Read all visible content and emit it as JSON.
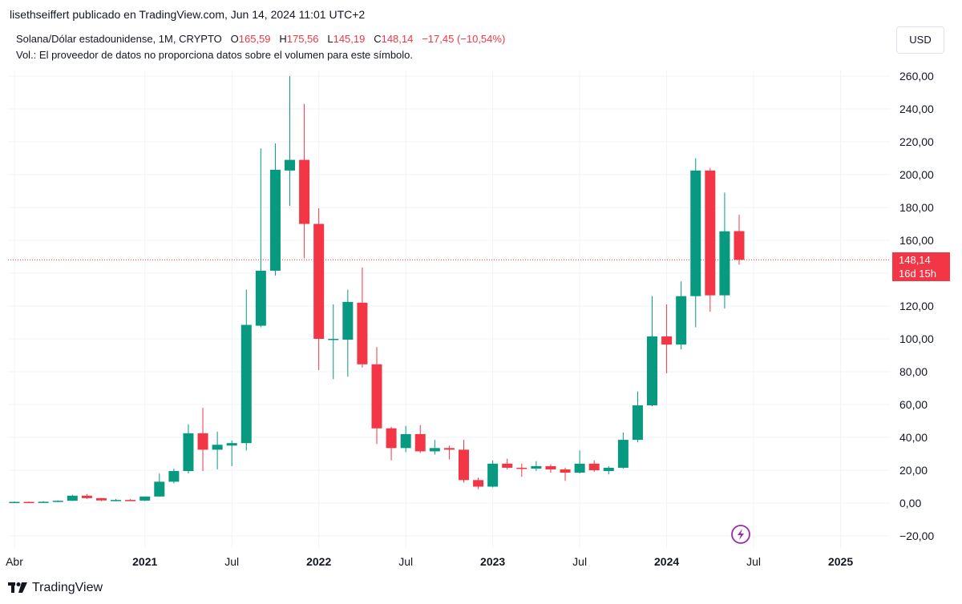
{
  "header": {
    "published": "lisethseiffert publicado en TradingView.com, Jun 14, 2024 11:01 UTC+2"
  },
  "legend": {
    "symbol": "Solana/Dólar estadounidense, 1M, CRYPTO",
    "o_label": "O",
    "o_value": "165,59",
    "h_label": "H",
    "h_value": "175,56",
    "l_label": "L",
    "l_value": "145,19",
    "c_label": "C",
    "c_value": "148,14",
    "change": "−17,45 (−10,54%)",
    "volume_note": "Vol.: El proveedor de datos no proporciona datos sobre el volumen para este símbolo."
  },
  "currency_button": "USD",
  "last_price": {
    "value": "148,14",
    "countdown": "16d 15h"
  },
  "footer": {
    "brand": "TradingView"
  },
  "colors": {
    "up": "#089981",
    "down": "#f23645",
    "grid": "#f0f3fa",
    "lightning": "#9c27b0"
  },
  "chart_data": {
    "type": "candlestick",
    "interval": "1M",
    "y_ticks": [
      "260,00",
      "240,00",
      "220,00",
      "200,00",
      "180,00",
      "160,00",
      "140,00",
      "120,00",
      "100,00",
      "80,00",
      "60,00",
      "40,00",
      "20,00",
      "0,00",
      "−20,00"
    ],
    "ylim": [
      -24,
      265
    ],
    "x_ticks": [
      {
        "label": "Abr",
        "month": "2020-04",
        "bold": false
      },
      {
        "label": "2021",
        "month": "2021-01",
        "bold": true
      },
      {
        "label": "Jul",
        "month": "2021-07",
        "bold": false
      },
      {
        "label": "2022",
        "month": "2022-01",
        "bold": true
      },
      {
        "label": "Jul",
        "month": "2022-07",
        "bold": false
      },
      {
        "label": "2023",
        "month": "2023-01",
        "bold": true
      },
      {
        "label": "Jul",
        "month": "2023-07",
        "bold": false
      },
      {
        "label": "2024",
        "month": "2024-01",
        "bold": true
      },
      {
        "label": "Jul",
        "month": "2024-07",
        "bold": false
      },
      {
        "label": "2025",
        "month": "2025-01",
        "bold": true
      }
    ],
    "candles": [
      {
        "month": "2020-04",
        "o": 0.6,
        "h": 1.0,
        "l": 0.5,
        "c": 0.7
      },
      {
        "month": "2020-05",
        "o": 0.7,
        "h": 0.9,
        "l": 0.5,
        "c": 0.6
      },
      {
        "month": "2020-06",
        "o": 0.6,
        "h": 1.2,
        "l": 0.5,
        "c": 0.8
      },
      {
        "month": "2020-07",
        "o": 0.8,
        "h": 1.6,
        "l": 0.6,
        "c": 1.4
      },
      {
        "month": "2020-08",
        "o": 1.4,
        "h": 5.0,
        "l": 1.3,
        "c": 4.5
      },
      {
        "month": "2020-09",
        "o": 4.5,
        "h": 5.5,
        "l": 2.5,
        "c": 3.0
      },
      {
        "month": "2020-10",
        "o": 3.0,
        "h": 3.2,
        "l": 1.2,
        "c": 1.6
      },
      {
        "month": "2020-11",
        "o": 1.6,
        "h": 2.5,
        "l": 1.1,
        "c": 1.9
      },
      {
        "month": "2020-12",
        "o": 1.9,
        "h": 2.5,
        "l": 1.3,
        "c": 1.5
      },
      {
        "month": "2021-01",
        "o": 1.5,
        "h": 4.0,
        "l": 1.2,
        "c": 4.0
      },
      {
        "month": "2021-02",
        "o": 4.0,
        "h": 18.0,
        "l": 3.8,
        "c": 13.0
      },
      {
        "month": "2021-03",
        "o": 13.0,
        "h": 21.0,
        "l": 12.0,
        "c": 19.5
      },
      {
        "month": "2021-04",
        "o": 19.5,
        "h": 48.0,
        "l": 18.0,
        "c": 42.5
      },
      {
        "month": "2021-05",
        "o": 42.5,
        "h": 58.0,
        "l": 19.5,
        "c": 32.5
      },
      {
        "month": "2021-06",
        "o": 32.5,
        "h": 43.5,
        "l": 20.5,
        "c": 35.5
      },
      {
        "month": "2021-07",
        "o": 35.0,
        "h": 38.0,
        "l": 22.5,
        "c": 36.5
      },
      {
        "month": "2021-08",
        "o": 36.5,
        "h": 130.0,
        "l": 32.0,
        "c": 108.5
      },
      {
        "month": "2021-09",
        "o": 108.0,
        "h": 216.0,
        "l": 107.0,
        "c": 141.5
      },
      {
        "month": "2021-10",
        "o": 141.5,
        "h": 219.0,
        "l": 138.5,
        "c": 203.0
      },
      {
        "month": "2021-11",
        "o": 202.5,
        "h": 260.0,
        "l": 181.0,
        "c": 209.0
      },
      {
        "month": "2021-12",
        "o": 209.0,
        "h": 243.0,
        "l": 149.0,
        "c": 170.0
      },
      {
        "month": "2022-01",
        "o": 170.0,
        "h": 179.5,
        "l": 81.0,
        "c": 100.0
      },
      {
        "month": "2022-02",
        "o": 99.5,
        "h": 121.0,
        "l": 75.5,
        "c": 100.0
      },
      {
        "month": "2022-03",
        "o": 99.5,
        "h": 130.0,
        "l": 77.0,
        "c": 122.5
      },
      {
        "month": "2022-04",
        "o": 122.0,
        "h": 143.5,
        "l": 82.5,
        "c": 84.5
      },
      {
        "month": "2022-05",
        "o": 84.5,
        "h": 95.0,
        "l": 36.0,
        "c": 45.5
      },
      {
        "month": "2022-06",
        "o": 45.5,
        "h": 46.5,
        "l": 26.0,
        "c": 33.5
      },
      {
        "month": "2022-07",
        "o": 33.5,
        "h": 47.0,
        "l": 31.0,
        "c": 42.0
      },
      {
        "month": "2022-08",
        "o": 42.0,
        "h": 47.5,
        "l": 30.5,
        "c": 31.5
      },
      {
        "month": "2022-09",
        "o": 31.5,
        "h": 38.5,
        "l": 29.5,
        "c": 33.5
      },
      {
        "month": "2022-10",
        "o": 33.5,
        "h": 35.0,
        "l": 26.5,
        "c": 32.5
      },
      {
        "month": "2022-11",
        "o": 32.5,
        "h": 38.5,
        "l": 12.5,
        "c": 14.0
      },
      {
        "month": "2022-12",
        "o": 14.0,
        "h": 15.5,
        "l": 8.5,
        "c": 10.0
      },
      {
        "month": "2023-01",
        "o": 10.0,
        "h": 26.0,
        "l": 9.5,
        "c": 24.0
      },
      {
        "month": "2023-02",
        "o": 24.0,
        "h": 27.0,
        "l": 20.5,
        "c": 21.5
      },
      {
        "month": "2023-03",
        "o": 21.5,
        "h": 24.0,
        "l": 16.0,
        "c": 21.0
      },
      {
        "month": "2023-04",
        "o": 21.0,
        "h": 25.5,
        "l": 19.5,
        "c": 22.5
      },
      {
        "month": "2023-05",
        "o": 22.5,
        "h": 23.5,
        "l": 18.5,
        "c": 20.5
      },
      {
        "month": "2023-06",
        "o": 20.5,
        "h": 21.5,
        "l": 13.5,
        "c": 18.5
      },
      {
        "month": "2023-07",
        "o": 18.5,
        "h": 32.0,
        "l": 18.0,
        "c": 24.0
      },
      {
        "month": "2023-08",
        "o": 24.0,
        "h": 26.0,
        "l": 19.0,
        "c": 20.0
      },
      {
        "month": "2023-09",
        "o": 19.5,
        "h": 22.5,
        "l": 17.5,
        "c": 21.5
      },
      {
        "month": "2023-10",
        "o": 21.5,
        "h": 43.0,
        "l": 21.0,
        "c": 38.5
      },
      {
        "month": "2023-11",
        "o": 38.5,
        "h": 68.0,
        "l": 37.0,
        "c": 59.5
      },
      {
        "month": "2023-12",
        "o": 59.5,
        "h": 126.0,
        "l": 59.0,
        "c": 101.5
      },
      {
        "month": "2024-01",
        "o": 101.5,
        "h": 121.0,
        "l": 79.0,
        "c": 96.5
      },
      {
        "month": "2024-02",
        "o": 96.5,
        "h": 135.0,
        "l": 93.5,
        "c": 126.0
      },
      {
        "month": "2024-03",
        "o": 126.0,
        "h": 210.0,
        "l": 107.0,
        "c": 202.5
      },
      {
        "month": "2024-04",
        "o": 202.5,
        "h": 204.0,
        "l": 116.5,
        "c": 126.5
      },
      {
        "month": "2024-05",
        "o": 126.5,
        "h": 189.0,
        "l": 118.5,
        "c": 165.5
      },
      {
        "month": "2024-06",
        "o": 165.59,
        "h": 175.56,
        "l": 145.19,
        "c": 148.14
      }
    ]
  }
}
